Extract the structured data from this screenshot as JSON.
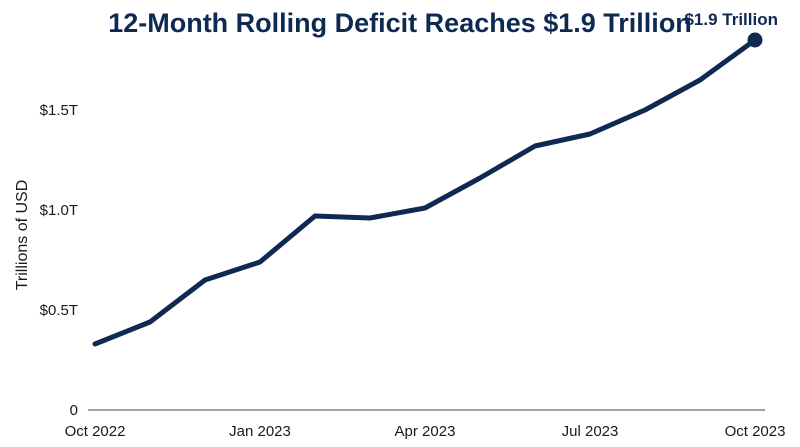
{
  "colors": {
    "line": "#0f2a52",
    "axis": "#444444",
    "title": "#0f2a52"
  },
  "chart_data": {
    "type": "line",
    "title": "12-Month Rolling Deficit Reaches $1.9 Trillion",
    "xlabel": "",
    "ylabel": "Trillions of USD",
    "grid": false,
    "x": [
      "Oct 2022",
      "Nov 2022",
      "Dec 2022",
      "Jan 2023",
      "Feb 2023",
      "Mar 2023",
      "Apr 2023",
      "May 2023",
      "Jun 2023",
      "Jul 2023",
      "Aug 2023",
      "Sep 2023",
      "Oct 2023"
    ],
    "values": [
      0.33,
      0.44,
      0.65,
      0.74,
      0.97,
      0.96,
      1.01,
      1.16,
      1.32,
      1.38,
      1.5,
      1.65,
      1.85
    ],
    "ylim": [
      0,
      1.9
    ],
    "yticks": [
      0,
      0.5,
      1.0,
      1.5
    ],
    "ytick_labels": [
      "0",
      "$0.5T",
      "$1.0T",
      "$1.5T"
    ],
    "xtick_indices": [
      0,
      3,
      6,
      9,
      12
    ],
    "xtick_labels": [
      "Oct 2022",
      "Jan 2023",
      "Apr 2023",
      "Jul 2023",
      "Oct 2023"
    ],
    "annotation": {
      "text": "$1.9 Trillion",
      "point_index": 12
    }
  }
}
